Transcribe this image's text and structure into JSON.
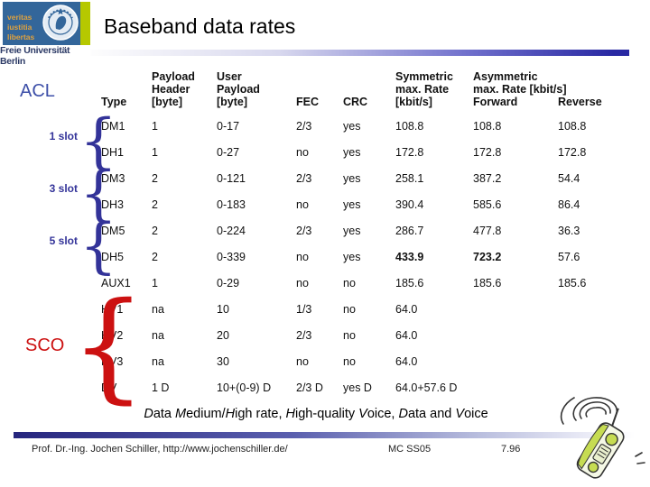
{
  "slide": {
    "logo": {
      "motto_lines": [
        "veritas",
        "iustitia",
        "libertas"
      ],
      "university": "Freie Universität Berlin"
    },
    "title": "Baseband data rates",
    "annotations": {
      "acl_label": "ACL",
      "sco_label": "SCO",
      "brace_glyph": "{",
      "slot_groups": [
        {
          "label": "1 slot"
        },
        {
          "label": "3 slot"
        },
        {
          "label": "5 slot"
        }
      ]
    },
    "table": {
      "headers": {
        "type": "Type",
        "payload_header": "Payload\nHeader\n[byte]",
        "user_payload": "User\nPayload\n[byte]",
        "fec": "FEC",
        "crc": "CRC",
        "symmetric": "Symmetric\nmax. Rate\n[kbit/s]",
        "asym_forward": "Asymmetric\nmax. Rate [kbit/s]\nForward",
        "reverse": "Reverse"
      },
      "rows": [
        [
          "DM1",
          "1",
          "0-17",
          "2/3",
          "yes",
          "108.8",
          "108.8",
          "108.8"
        ],
        [
          "DH1",
          "1",
          "0-27",
          "no",
          "yes",
          "172.8",
          "172.8",
          "172.8"
        ],
        [
          "DM3",
          "2",
          "0-121",
          "2/3",
          "yes",
          "258.1",
          "387.2",
          "54.4"
        ],
        [
          "DH3",
          "2",
          "0-183",
          "no",
          "yes",
          "390.4",
          "585.6",
          "86.4"
        ],
        [
          "DM5",
          "2",
          "0-224",
          "2/3",
          "yes",
          "286.7",
          "477.8",
          "36.3"
        ],
        [
          "DH5",
          "2",
          "0-339",
          "no",
          "yes",
          "433.9",
          "723.2",
          "57.6"
        ],
        [
          "AUX1",
          "1",
          "0-29",
          "no",
          "no",
          "185.6",
          "185.6",
          "185.6"
        ],
        [
          "HV1",
          "na",
          "10",
          "1/3",
          "no",
          "64.0",
          "",
          ""
        ],
        [
          "HV2",
          "na",
          "20",
          "2/3",
          "no",
          "64.0",
          "",
          ""
        ],
        [
          "HV3",
          "na",
          "30",
          "no",
          "no",
          "64.0",
          "",
          ""
        ],
        [
          "DV",
          "1 D",
          "10+(0-9) D",
          "2/3 D",
          "yes D",
          "64.0+57.6 D",
          "",
          ""
        ]
      ],
      "bold_cells": [
        "5:5",
        "5:6"
      ]
    },
    "caption_segments": [
      {
        "t": "D",
        "i": true
      },
      {
        "t": "ata ",
        "i": false
      },
      {
        "t": "M",
        "i": true
      },
      {
        "t": "edium/",
        "i": false
      },
      {
        "t": "H",
        "i": true
      },
      {
        "t": "igh rate, ",
        "i": false
      },
      {
        "t": "H",
        "i": true
      },
      {
        "t": "igh-quality ",
        "i": false
      },
      {
        "t": "V",
        "i": true
      },
      {
        "t": "oice, ",
        "i": false
      },
      {
        "t": "D",
        "i": true
      },
      {
        "t": "ata and ",
        "i": false
      },
      {
        "t": "V",
        "i": true
      },
      {
        "t": "oice",
        "i": false
      }
    ],
    "footer": {
      "credits": "Prof. Dr.-Ing. Jochen Schiller, http://www.jochenschiller.de/",
      "course": "MC SS05",
      "page": "7.96"
    },
    "colors": {
      "accent_dark_blue": "#2929a3",
      "annotation_blue": "#333399",
      "annotation_red": "#cc1111",
      "logo_blue": "#33669a",
      "logo_green": "#b6c800",
      "logo_motto_text": "#dfa13e",
      "phone_green": "#c6dc52"
    }
  }
}
